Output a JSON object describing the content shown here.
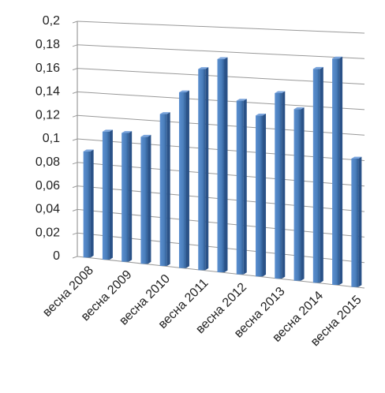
{
  "chart_data": {
    "type": "bar",
    "categories": [
      "весна 2008",
      null,
      "весна 2009",
      null,
      "весна 2010",
      null,
      "весна 2011",
      null,
      "весна 2012",
      null,
      "весна 2013",
      null,
      "весна 2014",
      null,
      "весна 2015"
    ],
    "values": [
      0.09,
      0.108,
      0.108,
      0.106,
      0.126,
      0.145,
      0.165,
      0.174,
      0.141,
      0.13,
      0.149,
      0.137,
      0.17,
      0.179,
      0.101
    ],
    "color": "#4a7ebb",
    "ylim": [
      0,
      0.2
    ],
    "yticks": [
      0,
      {
        "value": 0.02,
        "label": "0,02"
      },
      {
        "value": 0.04,
        "label": "0,04"
      },
      {
        "value": 0.06,
        "label": "0,06"
      },
      {
        "value": 0.08,
        "label": "0,08"
      },
      {
        "value": 0.1,
        "label": "0,1"
      },
      {
        "value": 0.12,
        "label": "0,12"
      },
      {
        "value": 0.14,
        "label": "0,14"
      },
      {
        "value": 0.16,
        "label": "0,16"
      },
      {
        "value": 0.18,
        "label": "0,18"
      },
      {
        "value": 0.2,
        "label": "0,2"
      }
    ],
    "grid": true
  }
}
